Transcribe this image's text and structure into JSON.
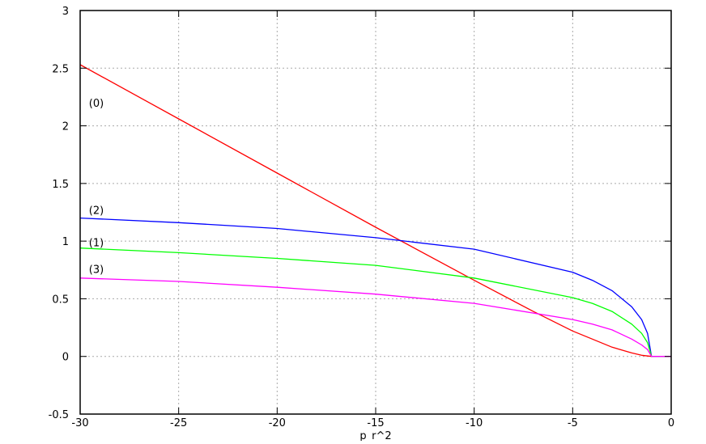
{
  "chart_data": {
    "type": "line",
    "title": "",
    "xlabel": "p_r^2",
    "xlabel_base": "p",
    "xlabel_sub": "r",
    "xlabel_sup": "2",
    "ylabel": "",
    "xlim": [
      -30,
      0
    ],
    "ylim": [
      -0.5,
      3
    ],
    "xticks": [
      "-30",
      "-25",
      "-20",
      "-15",
      "-10",
      "-5",
      "0"
    ],
    "yticks": [
      "-0.5",
      "0",
      "0.5",
      "1",
      "1.5",
      "2",
      "2.5",
      "3"
    ],
    "grid": true,
    "series": [
      {
        "color": "#ff0000",
        "x": [
          -30,
          -25,
          -20,
          -15,
          -10,
          -7,
          -5,
          -4,
          -3,
          -2,
          -1.5,
          -1,
          0
        ],
        "y": [
          2.53,
          2.06,
          1.59,
          1.12,
          0.66,
          0.39,
          0.22,
          0.15,
          0.08,
          0.03,
          0.01,
          0,
          0
        ]
      },
      {
        "color": "#0000ff",
        "x": [
          -30,
          -25,
          -20,
          -15,
          -10,
          -5,
          -4,
          -3,
          -2,
          -1.5,
          -1.2,
          -1,
          0
        ],
        "y": [
          1.2,
          1.16,
          1.11,
          1.03,
          0.93,
          0.73,
          0.66,
          0.57,
          0.43,
          0.32,
          0.2,
          0,
          0
        ]
      },
      {
        "color": "#00ff00",
        "x": [
          -30,
          -25,
          -20,
          -15,
          -10,
          -5,
          -4,
          -3,
          -2,
          -1.5,
          -1.2,
          -1,
          0
        ],
        "y": [
          0.94,
          0.9,
          0.85,
          0.79,
          0.68,
          0.51,
          0.46,
          0.39,
          0.28,
          0.2,
          0.12,
          0,
          0
        ]
      },
      {
        "color": "#ff00ff",
        "x": [
          -30,
          -25,
          -20,
          -15,
          -10,
          -5,
          -4,
          -3,
          -2,
          -1.5,
          -1.2,
          -1,
          0
        ],
        "y": [
          0.68,
          0.65,
          0.6,
          0.54,
          0.46,
          0.32,
          0.28,
          0.23,
          0.15,
          0.1,
          0.06,
          0,
          0
        ]
      }
    ],
    "annotations": [
      {
        "text": "(0)",
        "x": -28.9,
        "y": 2.2
      },
      {
        "text": "(2)",
        "x": -28.9,
        "y": 1.27
      },
      {
        "text": "(1)",
        "x": -28.9,
        "y": 0.99
      },
      {
        "text": "(3)",
        "x": -28.9,
        "y": 0.76
      }
    ]
  }
}
